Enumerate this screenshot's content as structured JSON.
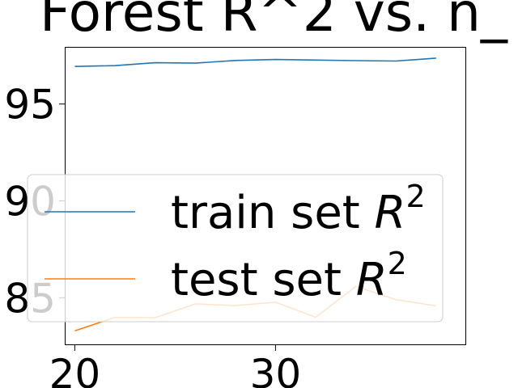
{
  "chart_data": {
    "type": "line",
    "title": "Forest R^2 vs. n_",
    "x": [
      20,
      22,
      24,
      26,
      28,
      30,
      32,
      34,
      36,
      38
    ],
    "series": [
      {
        "name": "train set R^2",
        "color": "#1f77b4",
        "values": [
          0.9694,
          0.9698,
          0.9713,
          0.9711,
          0.9725,
          0.973,
          0.9727,
          0.9724,
          0.9722,
          0.9737
        ]
      },
      {
        "name": "test set R^2",
        "color": "#ff7f0e",
        "values": [
          0.8329,
          0.8398,
          0.8397,
          0.8468,
          0.8459,
          0.8477,
          0.8399,
          0.8558,
          0.849,
          0.8458
        ]
      }
    ],
    "xlim": [
      19.5,
      39.5
    ],
    "ylim": [
      0.8255,
      0.9795
    ],
    "xticks": [
      20,
      30
    ],
    "yticks": [
      0.85,
      0.9,
      0.95
    ],
    "ytick_labels": [
      ".85",
      ".90",
      ".95"
    ],
    "legend": {
      "placement": "center-left",
      "entries": [
        {
          "label": "train set ",
          "math": "R",
          "sup": "2"
        },
        {
          "label": "test set ",
          "math": "R",
          "sup": "2"
        }
      ]
    },
    "grid": false
  }
}
